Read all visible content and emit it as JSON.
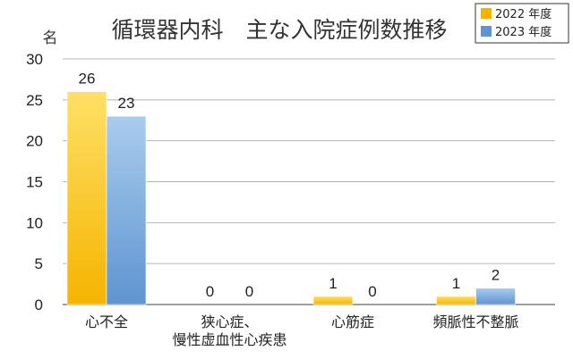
{
  "chart_data": {
    "type": "bar",
    "title": "循環器内科　主な入院症例数推移",
    "ylabel": "名",
    "xlabel": "",
    "ylim": [
      0,
      30
    ],
    "yticks": [
      0,
      5,
      10,
      15,
      20,
      25,
      30
    ],
    "grid": "horizontal",
    "legend_position": "top-right",
    "categories": [
      [
        "心不全"
      ],
      [
        "狭心症、",
        "慢性虚血性心疾患"
      ],
      [
        "心筋症"
      ],
      [
        "頻脈性不整脈"
      ]
    ],
    "series": [
      {
        "name": "2022 年度",
        "values": [
          26,
          0,
          1,
          1
        ],
        "color": "#f5b400",
        "color_light": "#ffe066"
      },
      {
        "name": "2023 年度",
        "values": [
          23,
          0,
          0,
          2
        ],
        "color": "#5e94d0",
        "color_light": "#a9ccee"
      }
    ]
  }
}
